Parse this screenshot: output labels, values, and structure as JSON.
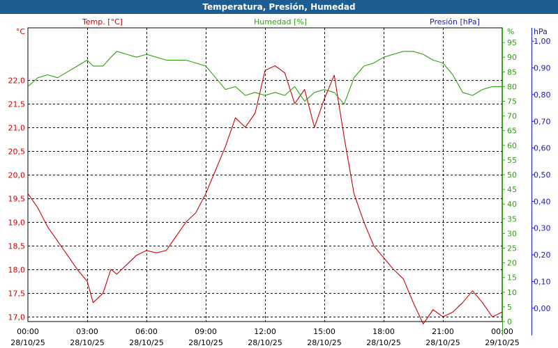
{
  "title": "Temperatura, Presión, Humedad",
  "colors": {
    "temp": "#cc0000",
    "humidity": "#2ea012",
    "pressure": "#1a1ab4",
    "grid": "#000000",
    "titlebar": "#1d5d92"
  },
  "chart_data": {
    "type": "line",
    "title": "Temperatura, Presión, Humedad",
    "grid": true,
    "x_ticks": [
      {
        "time": "00:00",
        "date": "28/10/25"
      },
      {
        "time": "03:00",
        "date": "28/10/25"
      },
      {
        "time": "06:00",
        "date": "28/10/25"
      },
      {
        "time": "09:00",
        "date": "28/10/25"
      },
      {
        "time": "12:00",
        "date": "28/10/25"
      },
      {
        "time": "15:00",
        "date": "28/10/25"
      },
      {
        "time": "18:00",
        "date": "28/10/25"
      },
      {
        "time": "21:00",
        "date": "28/10/25"
      },
      {
        "time": "00:00",
        "date": "29/10/25"
      }
    ],
    "x_range_hours": [
      0,
      24
    ],
    "axes": {
      "temp": {
        "label": "Temp. [°C]",
        "unit": "°C",
        "range": [
          16.9,
          23.1
        ],
        "ticks": [
          "22,0",
          "21,5",
          "21,0",
          "20,5",
          "20,0",
          "19,5",
          "19,0",
          "18,5",
          "18,0",
          "17,5",
          "17,0"
        ],
        "tick_values": [
          22.0,
          21.5,
          21.0,
          20.5,
          20.0,
          19.5,
          19.0,
          18.5,
          18.0,
          17.5,
          17.0
        ]
      },
      "humidity": {
        "label": "Humedad [%]",
        "unit": "%",
        "range": [
          0,
          100
        ],
        "ticks": [
          "95",
          "90",
          "85",
          "80",
          "75",
          "70",
          "65",
          "60",
          "55",
          "50",
          "45",
          "40",
          "35",
          "30",
          "25",
          "20",
          "15",
          "10",
          "5",
          "0"
        ],
        "tick_values": [
          95,
          90,
          85,
          80,
          75,
          70,
          65,
          60,
          55,
          50,
          45,
          40,
          35,
          30,
          25,
          20,
          15,
          10,
          5,
          0
        ]
      },
      "pressure": {
        "label": "Presión [hPa]",
        "unit": "hPa",
        "range": [
          -0.05,
          1.05
        ],
        "ticks": [
          "1,00",
          "0,90",
          "0,80",
          "0,70",
          "0,60",
          "0,50",
          "0,40",
          "0,30",
          "0,20",
          "0,10",
          "0,00"
        ],
        "tick_values": [
          1.0,
          0.9,
          0.8,
          0.7,
          0.6,
          0.5,
          0.4,
          0.3,
          0.2,
          0.1,
          0.0
        ]
      }
    },
    "series": [
      {
        "name": "Temp. [°C]",
        "axis": "temp",
        "x": [
          0,
          0.5,
          1.0,
          1.5,
          2.0,
          2.5,
          3.0,
          3.3,
          3.8,
          4.2,
          4.5,
          5.0,
          5.5,
          6.0,
          6.5,
          7.0,
          7.5,
          8.0,
          8.5,
          9.0,
          9.5,
          10.0,
          10.5,
          11.0,
          11.5,
          12.0,
          12.5,
          13.0,
          13.5,
          14.0,
          14.5,
          15.0,
          15.5,
          16.0,
          16.5,
          17.0,
          17.5,
          18.0,
          18.5,
          19.0,
          19.5,
          20.0,
          20.5,
          21.0,
          21.5,
          22.0,
          22.5,
          23.0,
          23.5,
          24.0
        ],
        "y": [
          19.6,
          19.3,
          18.9,
          18.6,
          18.3,
          18.0,
          17.75,
          17.3,
          17.5,
          18.0,
          17.9,
          18.1,
          18.3,
          18.4,
          18.35,
          18.4,
          18.7,
          19.0,
          19.2,
          19.6,
          20.1,
          20.6,
          21.2,
          21.0,
          21.3,
          22.2,
          22.3,
          22.15,
          21.5,
          21.8,
          21.0,
          21.6,
          22.1,
          20.8,
          19.6,
          19.0,
          18.5,
          18.25,
          18.0,
          17.8,
          17.3,
          16.85,
          17.15,
          17.0,
          17.1,
          17.3,
          17.55,
          17.3,
          17.0,
          17.1
        ]
      },
      {
        "name": "Humedad [%]",
        "axis": "humidity",
        "x": [
          0,
          0.5,
          1.0,
          1.5,
          2.0,
          2.5,
          3.0,
          3.3,
          3.8,
          4.2,
          4.5,
          5.0,
          5.5,
          6.0,
          6.5,
          7.0,
          7.5,
          8.0,
          8.5,
          9.0,
          9.5,
          10.0,
          10.5,
          11.0,
          11.5,
          12.0,
          12.5,
          13.0,
          13.5,
          14.0,
          14.5,
          15.0,
          15.5,
          16.0,
          16.5,
          17.0,
          17.5,
          18.0,
          18.5,
          19.0,
          19.5,
          20.0,
          20.5,
          21.0,
          21.5,
          22.0,
          22.5,
          23.0,
          23.5,
          24.0
        ],
        "y": [
          80,
          83,
          84,
          83,
          85,
          87,
          89,
          87,
          87,
          90,
          92,
          91,
          90,
          91,
          90,
          89,
          89,
          89,
          88,
          87,
          83,
          79,
          80,
          77,
          78,
          77,
          78,
          77,
          80,
          75,
          78,
          79,
          78,
          74,
          83,
          87,
          88,
          90,
          91,
          92,
          92,
          91,
          89,
          88,
          84,
          78,
          77,
          79,
          80,
          80
        ]
      }
    ]
  }
}
